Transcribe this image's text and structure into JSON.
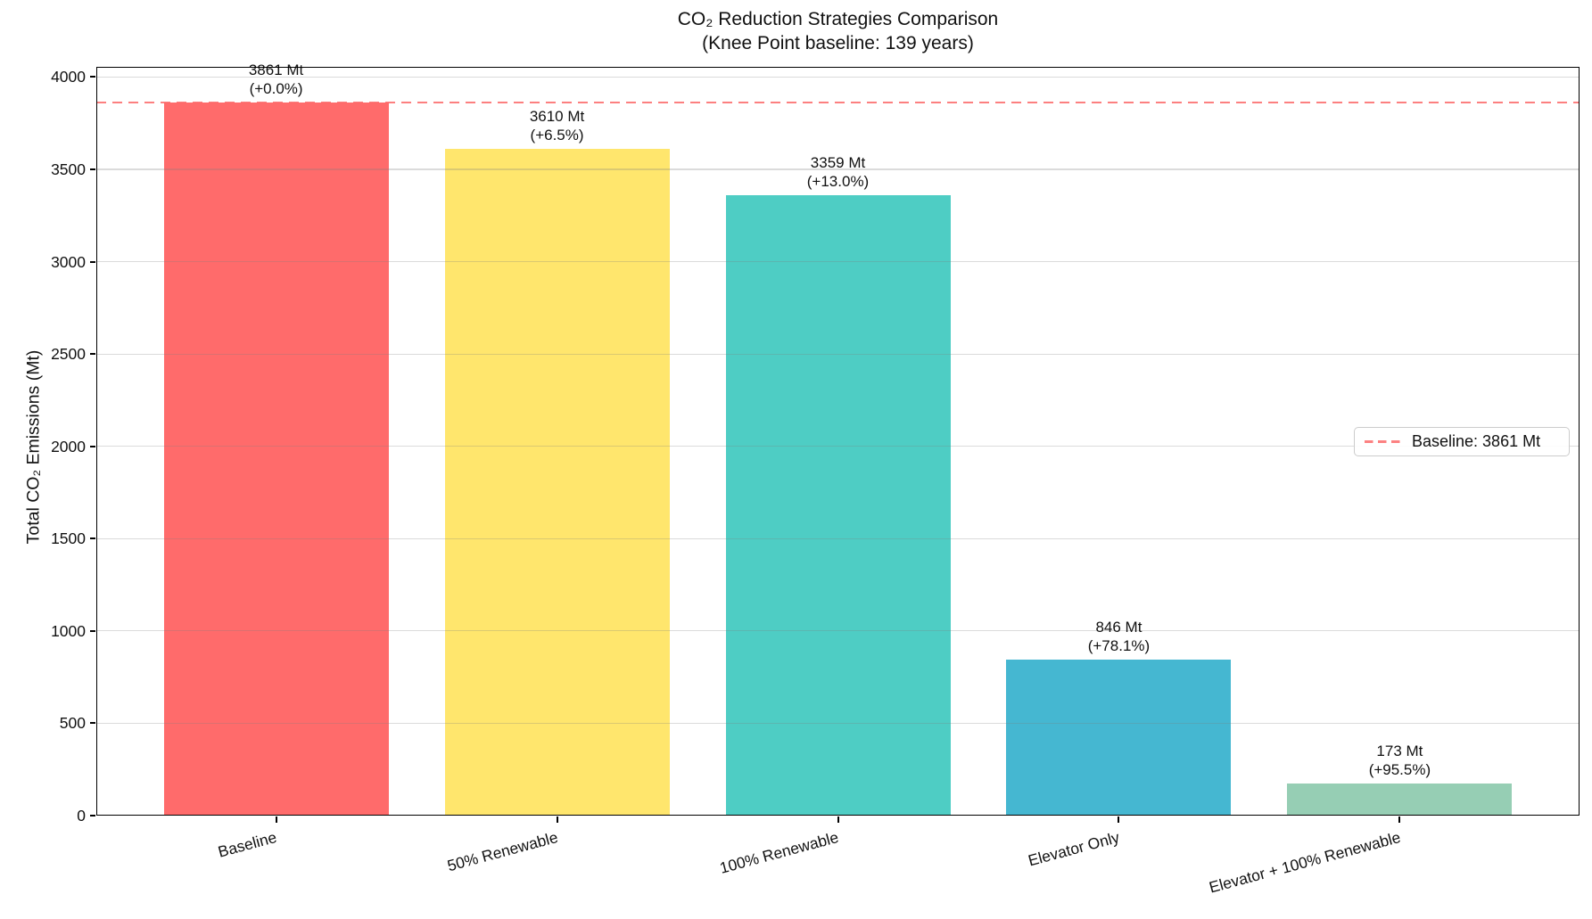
{
  "chart_data": {
    "type": "bar",
    "title": "CO₂ Reduction Strategies Comparison",
    "subtitle": "(Knee Point baseline: 139 years)",
    "ylabel": "Total CO₂ Emissions (Mt)",
    "categories": [
      "Baseline",
      "50% Renewable",
      "100% Renewable",
      "Elevator Only",
      "Elevator + 100% Renewable"
    ],
    "values": [
      3861,
      3610,
      3359,
      846,
      173
    ],
    "value_labels": [
      "3861 Mt",
      "3610 Mt",
      "3359 Mt",
      "846 Mt",
      "173 Mt"
    ],
    "pct_labels": [
      "(+0.0%)",
      "(+6.5%)",
      "(+13.0%)",
      "(+78.1%)",
      "(+95.5%)"
    ],
    "colors": [
      "#FF6B6B",
      "#FFE66D",
      "#4ECDC4",
      "#45B7D1",
      "#96CEB4"
    ],
    "yticks": [
      0,
      500,
      1000,
      1500,
      2000,
      2500,
      3000,
      3500,
      4000
    ],
    "ylim": [
      0,
      4055
    ],
    "xtick_rotation_deg": 15,
    "grid": true,
    "legend_position": "center right",
    "baseline": {
      "value": 3861,
      "line_style": "dashed",
      "line_color": "#FF6B6B",
      "legend_label": "Baseline: 3861 Mt"
    }
  }
}
